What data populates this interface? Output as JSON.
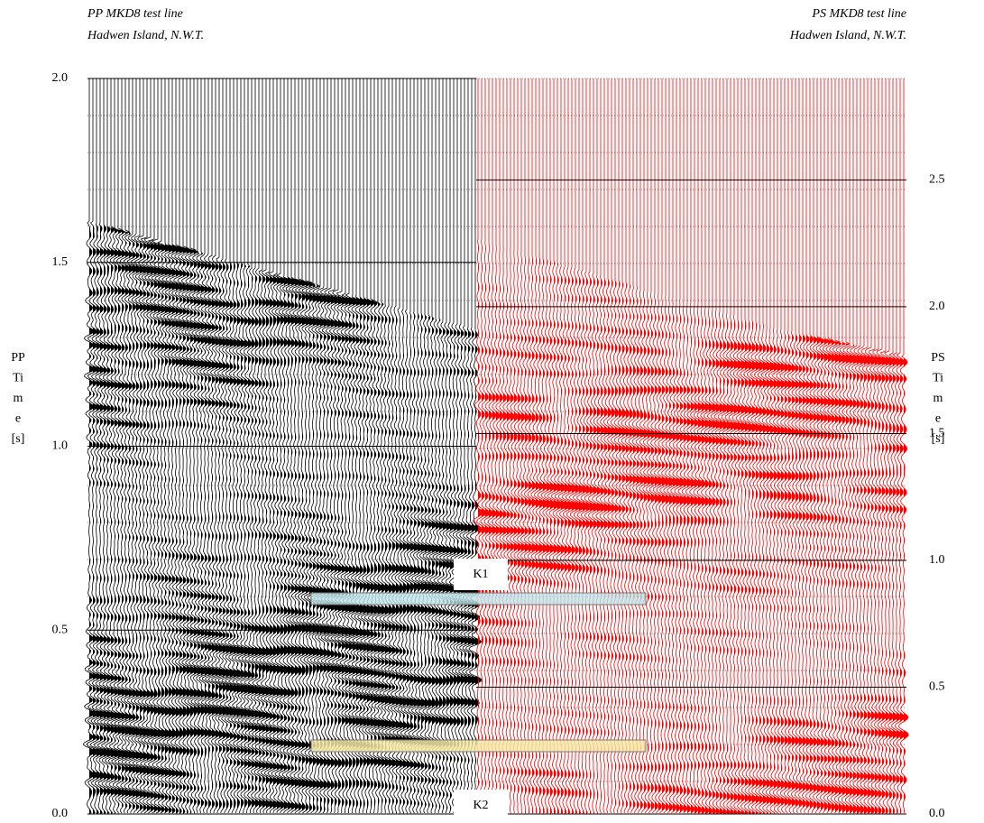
{
  "chart_data": [
    {
      "type": "seismic",
      "title": "PP MKD8 test line",
      "subtitle": "Hadwen Island, N.W.T.",
      "y_label": [
        "PP",
        "Ti",
        "m",
        "e",
        "[s]"
      ],
      "color": "#000000",
      "ylim": [
        0,
        2.0
      ],
      "yticks": [
        {
          "value": 0,
          "label": "0.0"
        },
        0.5,
        {
          "value": 1,
          "label": "1.0"
        },
        1.5,
        {
          "value": 2,
          "label": "2.0"
        }
      ],
      "grid": true,
      "axis_side": "left"
    },
    {
      "type": "seismic",
      "title": "PS MKD8 test line",
      "subtitle": "Hadwen Island, N.W.T.",
      "y_label": [
        "PS",
        "Ti",
        "m",
        "e",
        "[s]"
      ],
      "color": "#ff0000",
      "ylim": [
        0,
        2.9
      ],
      "yticks": [
        {
          "value": 0,
          "label": "0.0"
        },
        0.5,
        {
          "value": 1,
          "label": "1.0"
        },
        1.5,
        {
          "value": 2,
          "label": "2.0"
        },
        2.5
      ],
      "grid": true,
      "axis_side": "right"
    }
  ],
  "annotations": [
    "K1",
    "K2"
  ]
}
